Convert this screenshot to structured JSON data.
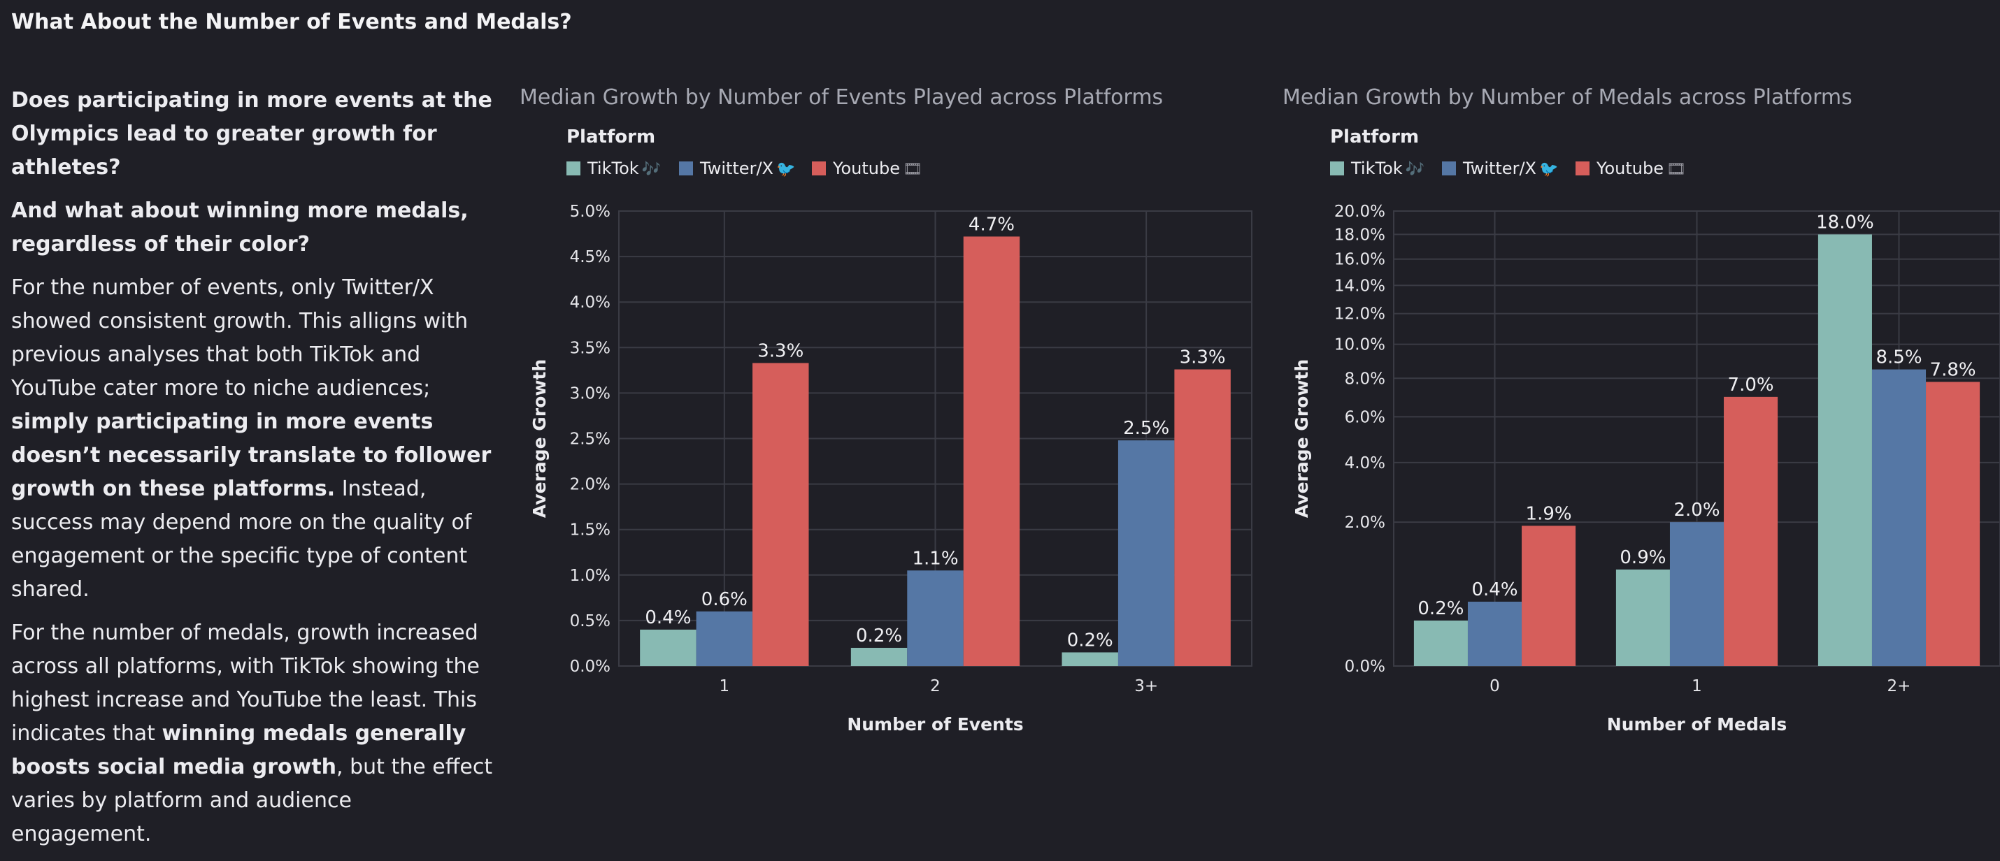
{
  "page": {
    "heading": "What About the Number of Events and Medals?",
    "questions": [
      "Does participating in more events at the Olympics lead to greater growth for athletes?",
      "And what about winning more medals, regardless of their color?"
    ],
    "para1": {
      "pre": "For the number of events, only Twitter/X showed consistent growth. This alligns with previous analyses that both TikTok and YouTube cater more to niche audiences; ",
      "bold": "simply participating in more events doesn’t necessarily translate to follower growth on these platforms.",
      "post": " Instead, success may depend more on the quality of engagement or the specific type of content shared."
    },
    "para2": {
      "pre": "For the number of medals, growth increased across all platforms, with TikTok showing the highest increase and YouTube the least. This indicates that ",
      "bold": "winning medals generally boosts social media growth",
      "post": ", but the effect varies by platform and audience engagement."
    }
  },
  "legend": {
    "title": "Platform",
    "items": [
      {
        "name": "TikTok",
        "glyph": "🎶",
        "color": "#88bab3"
      },
      {
        "name": "Twitter/X",
        "glyph": "🐦",
        "color": "#5577a5"
      },
      {
        "name": "Youtube",
        "glyph": "🎞",
        "color": "#d65e5b"
      }
    ]
  },
  "chart_data": [
    {
      "type": "bar",
      "title": "Median Growth by Number of Events Played across Platforms",
      "xlabel": "Number of Events",
      "ylabel": "Average Growth",
      "categories": [
        "1",
        "2",
        "3+"
      ],
      "ylim": [
        0,
        5.0
      ],
      "yscale": "linear",
      "yticks": [
        0.0,
        0.5,
        1.0,
        1.5,
        2.0,
        2.5,
        3.0,
        3.5,
        4.0,
        4.5,
        5.0
      ],
      "ytick_labels": [
        "0.0%",
        "0.5%",
        "1.0%",
        "1.5%",
        "2.0%",
        "2.5%",
        "3.0%",
        "3.5%",
        "4.0%",
        "4.5%",
        "5.0%"
      ],
      "grid": true,
      "legend_position": "top-left",
      "series": [
        {
          "name": "TikTok",
          "values": [
            0.4,
            0.2,
            0.15
          ],
          "labels": [
            "0.4%",
            "0.2%",
            "0.2%"
          ]
        },
        {
          "name": "Twitter/X",
          "values": [
            0.6,
            1.05,
            2.48
          ],
          "labels": [
            "0.6%",
            "1.1%",
            "2.5%"
          ]
        },
        {
          "name": "Youtube",
          "values": [
            3.33,
            4.72,
            3.26
          ],
          "labels": [
            "3.3%",
            "4.7%",
            "3.3%"
          ]
        }
      ]
    },
    {
      "type": "bar",
      "title": "Median Growth by Number of Medals across Platforms",
      "xlabel": "Number of Medals",
      "ylabel": "Average Growth",
      "categories": [
        "0",
        "1",
        "2+"
      ],
      "ylim": [
        0,
        20.0
      ],
      "yscale": "sqrt",
      "yticks": [
        0.0,
        2.0,
        4.0,
        6.0,
        8.0,
        10.0,
        12.0,
        14.0,
        16.0,
        18.0,
        20.0
      ],
      "ytick_labels": [
        "0.0%",
        "2.0%",
        "4.0%",
        "6.0%",
        "8.0%",
        "10.0%",
        "12.0%",
        "14.0%",
        "16.0%",
        "18.0%",
        "20.0%"
      ],
      "grid": true,
      "legend_position": "top-left",
      "series": [
        {
          "name": "TikTok",
          "values": [
            0.2,
            0.9,
            18.0
          ],
          "labels": [
            "0.2%",
            "0.9%",
            "18.0%"
          ]
        },
        {
          "name": "Twitter/X",
          "values": [
            0.4,
            2.0,
            8.5
          ],
          "labels": [
            "0.4%",
            "2.0%",
            "8.5%"
          ]
        },
        {
          "name": "Youtube",
          "values": [
            1.9,
            7.0,
            7.8
          ],
          "labels": [
            "1.9%",
            "7.0%",
            "7.8%"
          ]
        }
      ]
    }
  ]
}
